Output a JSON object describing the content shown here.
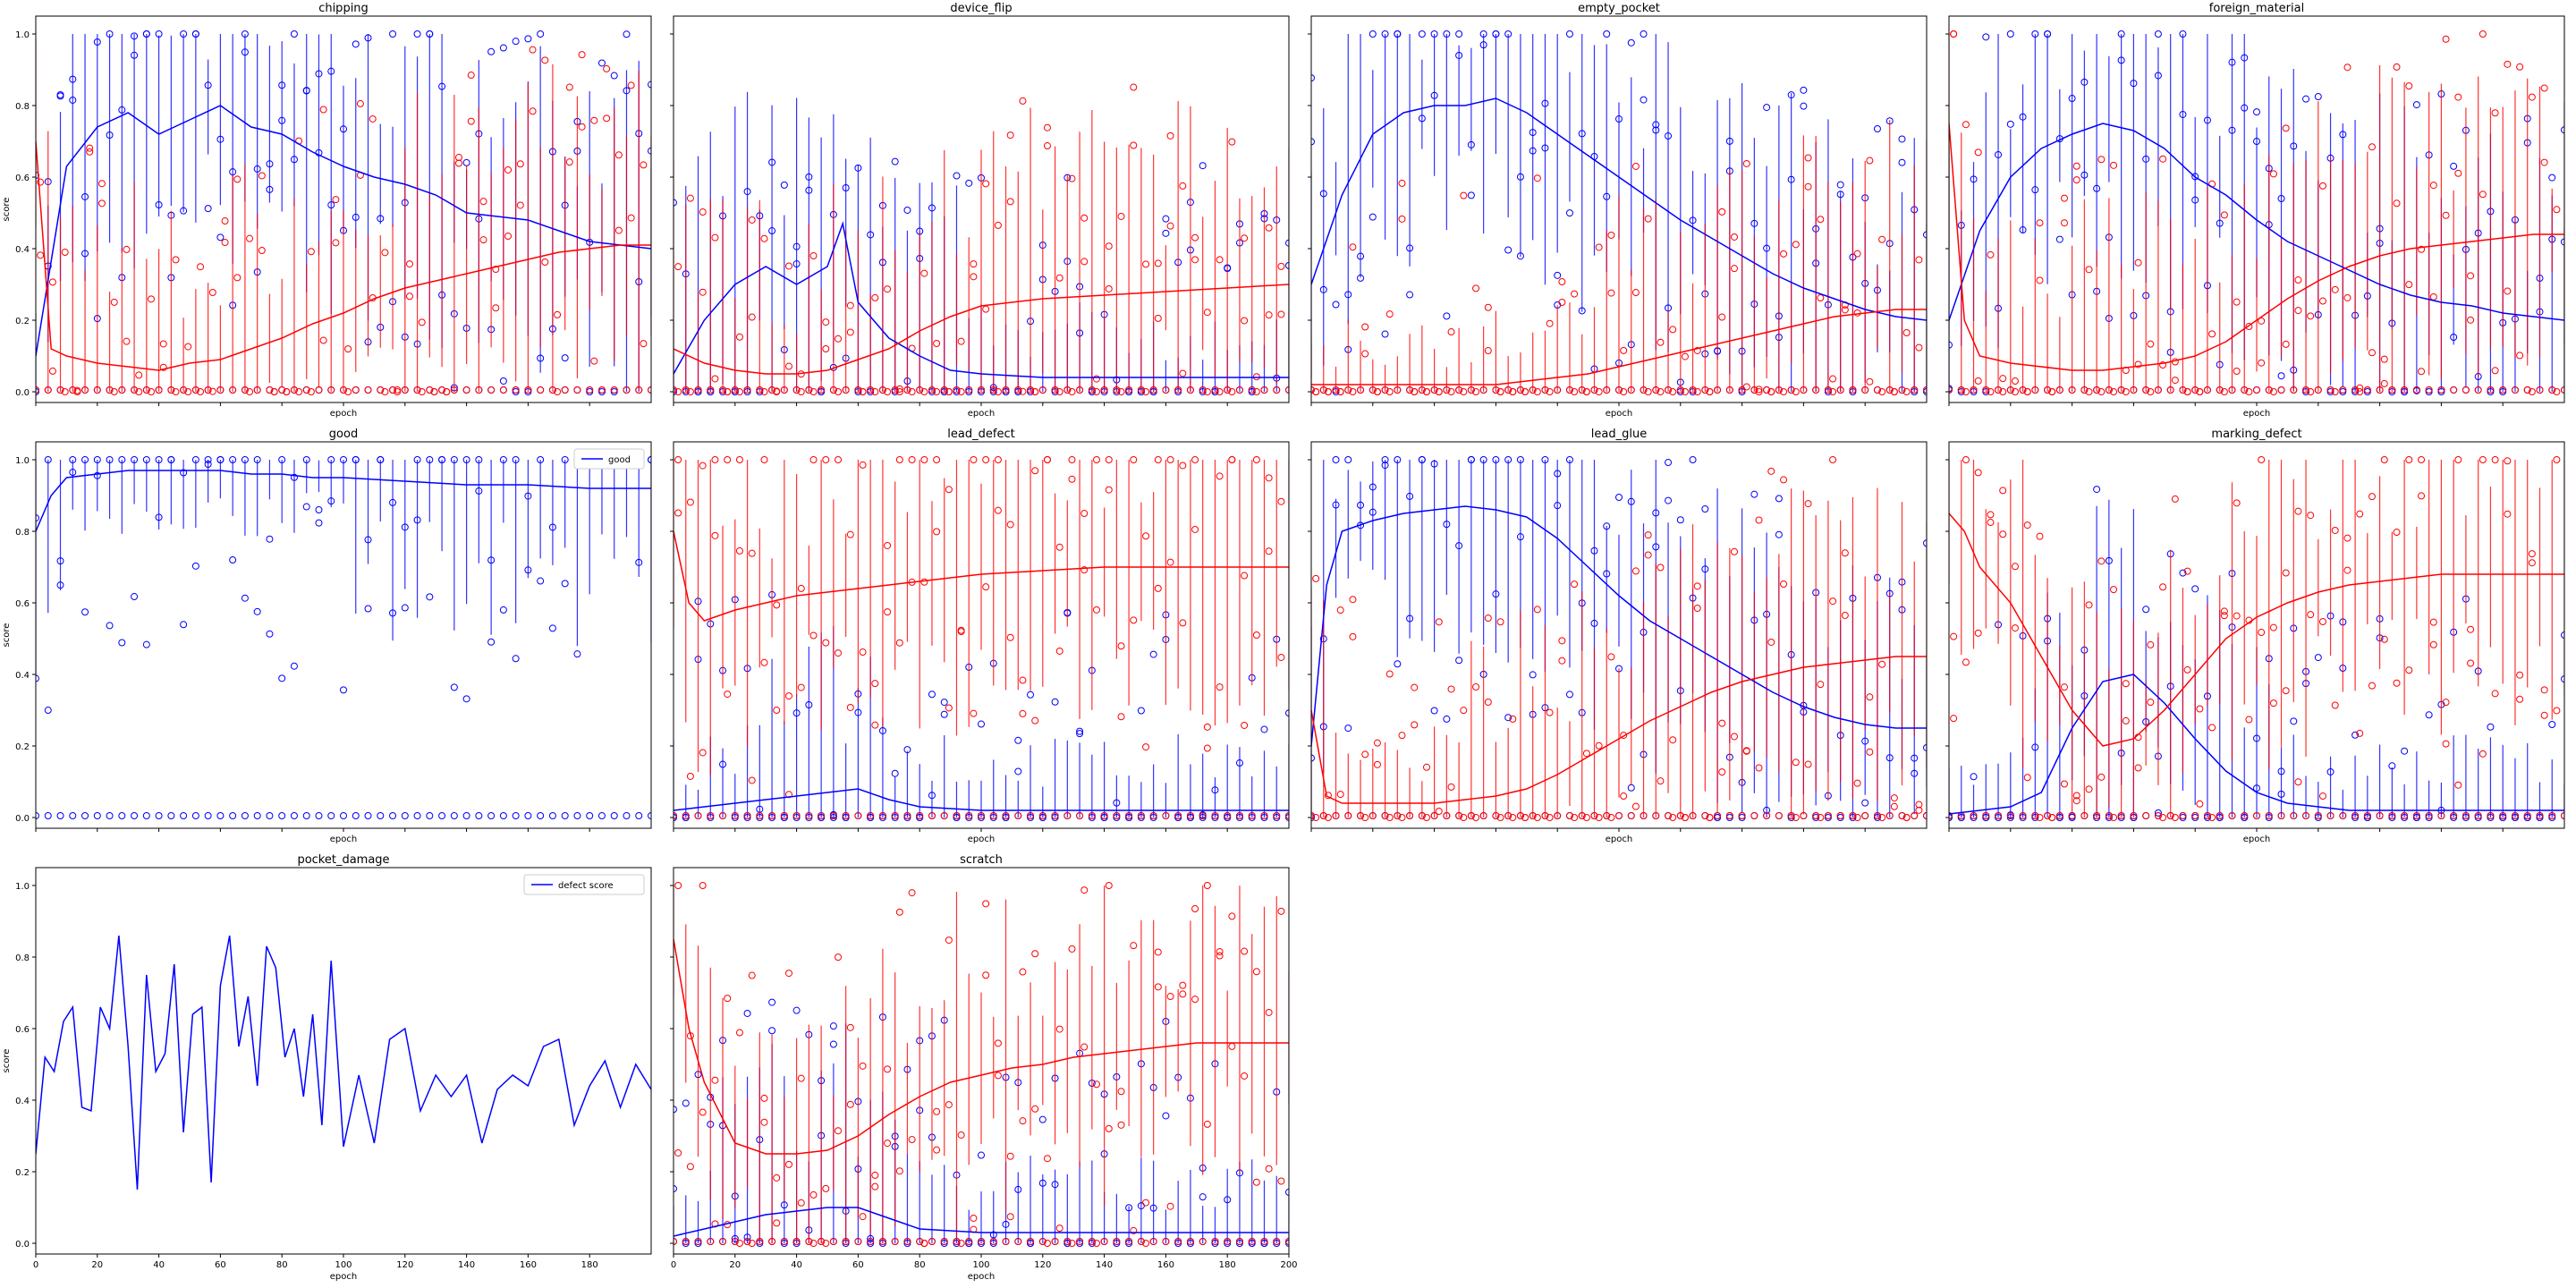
{
  "figure": {
    "ylabel": "score",
    "xlabel": "epoch",
    "x_ticks": [
      0,
      20,
      40,
      60,
      80,
      100,
      120,
      140,
      160,
      180
    ],
    "x_ticks_last_row_b": [
      0,
      20,
      40,
      60,
      80,
      100,
      120,
      140,
      160,
      180,
      200
    ],
    "y_ticks": [
      "0.0",
      "0.2",
      "0.4",
      "0.6",
      "0.8",
      "1.0"
    ],
    "colors": {
      "defect": "#ff0000",
      "good": "#0000ff"
    }
  },
  "chart_data": [
    {
      "title": "chipping",
      "type": "line",
      "xlim": [
        0,
        200
      ],
      "ylim": [
        -0.03,
        1.05
      ],
      "series": [
        {
          "color": "#0000ff",
          "x": [
            0,
            10,
            20,
            30,
            40,
            50,
            60,
            70,
            80,
            90,
            100,
            110,
            120,
            130,
            140,
            150,
            160,
            170,
            180,
            190,
            200
          ],
          "values": [
            0.1,
            0.63,
            0.74,
            0.78,
            0.72,
            0.76,
            0.8,
            0.74,
            0.72,
            0.67,
            0.63,
            0.6,
            0.58,
            0.55,
            0.5,
            0.49,
            0.48,
            0.45,
            0.42,
            0.41,
            0.4
          ]
        },
        {
          "color": "#ff0000",
          "x": [
            0,
            5,
            10,
            20,
            30,
            40,
            50,
            60,
            70,
            80,
            90,
            100,
            110,
            120,
            130,
            140,
            150,
            160,
            170,
            180,
            190,
            200
          ],
          "values": [
            0.7,
            0.12,
            0.1,
            0.08,
            0.07,
            0.06,
            0.08,
            0.09,
            0.12,
            0.15,
            0.19,
            0.22,
            0.26,
            0.29,
            0.31,
            0.33,
            0.35,
            0.37,
            0.39,
            0.4,
            0.41,
            0.41
          ]
        }
      ]
    },
    {
      "title": "device_flip",
      "type": "line",
      "xlim": [
        0,
        200
      ],
      "ylim": [
        -0.03,
        1.05
      ],
      "series": [
        {
          "color": "#0000ff",
          "x": [
            0,
            10,
            20,
            30,
            40,
            50,
            55,
            60,
            70,
            80,
            90,
            100,
            120,
            140,
            160,
            180,
            200
          ],
          "values": [
            0.05,
            0.2,
            0.3,
            0.35,
            0.3,
            0.35,
            0.47,
            0.25,
            0.15,
            0.1,
            0.06,
            0.05,
            0.04,
            0.04,
            0.04,
            0.04,
            0.04
          ]
        },
        {
          "color": "#ff0000",
          "x": [
            0,
            10,
            20,
            30,
            40,
            50,
            60,
            70,
            80,
            90,
            100,
            120,
            140,
            160,
            180,
            200
          ],
          "values": [
            0.12,
            0.08,
            0.06,
            0.05,
            0.05,
            0.06,
            0.09,
            0.12,
            0.17,
            0.21,
            0.24,
            0.26,
            0.27,
            0.28,
            0.29,
            0.3
          ]
        }
      ]
    },
    {
      "title": "empty_pocket",
      "type": "line",
      "xlim": [
        0,
        200
      ],
      "ylim": [
        -0.03,
        1.05
      ],
      "series": [
        {
          "color": "#0000ff",
          "x": [
            0,
            10,
            20,
            30,
            40,
            50,
            60,
            70,
            80,
            90,
            100,
            110,
            120,
            130,
            140,
            150,
            160,
            170,
            180,
            190,
            200
          ],
          "values": [
            0.3,
            0.55,
            0.72,
            0.78,
            0.8,
            0.8,
            0.82,
            0.78,
            0.72,
            0.66,
            0.6,
            0.54,
            0.48,
            0.43,
            0.38,
            0.33,
            0.29,
            0.26,
            0.23,
            0.21,
            0.2
          ]
        },
        {
          "color": "#ff0000",
          "x": [
            0,
            10,
            20,
            30,
            40,
            50,
            60,
            70,
            80,
            90,
            100,
            110,
            120,
            130,
            140,
            150,
            160,
            170,
            180,
            190,
            200
          ],
          "values": [
            0.02,
            0.02,
            0.02,
            0.02,
            0.02,
            0.02,
            0.02,
            0.03,
            0.04,
            0.05,
            0.07,
            0.09,
            0.11,
            0.13,
            0.15,
            0.17,
            0.19,
            0.21,
            0.22,
            0.23,
            0.23
          ]
        }
      ]
    },
    {
      "title": "foreign_material",
      "type": "line",
      "xlim": [
        0,
        200
      ],
      "ylim": [
        -0.03,
        1.05
      ],
      "series": [
        {
          "color": "#0000ff",
          "x": [
            0,
            10,
            20,
            30,
            40,
            50,
            60,
            70,
            80,
            90,
            100,
            110,
            120,
            130,
            140,
            150,
            160,
            170,
            180,
            190,
            200
          ],
          "values": [
            0.2,
            0.45,
            0.6,
            0.68,
            0.72,
            0.75,
            0.73,
            0.68,
            0.6,
            0.55,
            0.48,
            0.42,
            0.38,
            0.34,
            0.3,
            0.27,
            0.25,
            0.24,
            0.22,
            0.21,
            0.2
          ]
        },
        {
          "color": "#ff0000",
          "x": [
            0,
            5,
            10,
            20,
            30,
            40,
            50,
            60,
            70,
            80,
            90,
            100,
            110,
            120,
            130,
            140,
            150,
            160,
            170,
            180,
            190,
            200
          ],
          "values": [
            0.75,
            0.2,
            0.1,
            0.08,
            0.07,
            0.06,
            0.06,
            0.07,
            0.08,
            0.1,
            0.14,
            0.2,
            0.26,
            0.31,
            0.35,
            0.38,
            0.4,
            0.41,
            0.42,
            0.43,
            0.44,
            0.44
          ]
        }
      ]
    },
    {
      "title": "good",
      "type": "line",
      "xlim": [
        0,
        200
      ],
      "ylim": [
        -0.03,
        1.05
      ],
      "legend": [
        "good"
      ],
      "series": [
        {
          "color": "#0000ff",
          "x": [
            0,
            5,
            10,
            20,
            30,
            40,
            50,
            60,
            70,
            80,
            90,
            100,
            120,
            140,
            160,
            180,
            200
          ],
          "values": [
            0.8,
            0.9,
            0.95,
            0.96,
            0.97,
            0.97,
            0.97,
            0.97,
            0.96,
            0.96,
            0.95,
            0.95,
            0.94,
            0.93,
            0.93,
            0.92,
            0.92
          ]
        }
      ]
    },
    {
      "title": "lead_defect",
      "type": "line",
      "xlim": [
        0,
        200
      ],
      "ylim": [
        -0.03,
        1.05
      ],
      "series": [
        {
          "color": "#0000ff",
          "x": [
            0,
            10,
            20,
            30,
            40,
            50,
            60,
            70,
            80,
            100,
            120,
            140,
            160,
            180,
            200
          ],
          "values": [
            0.02,
            0.03,
            0.04,
            0.05,
            0.06,
            0.07,
            0.08,
            0.05,
            0.03,
            0.02,
            0.02,
            0.02,
            0.02,
            0.02,
            0.02
          ]
        },
        {
          "color": "#ff0000",
          "x": [
            0,
            5,
            10,
            20,
            30,
            40,
            50,
            60,
            70,
            80,
            90,
            100,
            120,
            140,
            160,
            180,
            200
          ],
          "values": [
            0.8,
            0.6,
            0.55,
            0.58,
            0.6,
            0.62,
            0.63,
            0.64,
            0.65,
            0.66,
            0.67,
            0.68,
            0.69,
            0.7,
            0.7,
            0.7,
            0.7
          ]
        }
      ]
    },
    {
      "title": "lead_glue",
      "type": "line",
      "xlim": [
        0,
        200
      ],
      "ylim": [
        -0.03,
        1.05
      ],
      "series": [
        {
          "color": "#0000ff",
          "x": [
            0,
            5,
            10,
            20,
            30,
            40,
            50,
            60,
            70,
            80,
            90,
            100,
            110,
            120,
            130,
            140,
            150,
            160,
            170,
            180,
            190,
            200
          ],
          "values": [
            0.2,
            0.65,
            0.8,
            0.83,
            0.85,
            0.86,
            0.87,
            0.86,
            0.84,
            0.78,
            0.7,
            0.62,
            0.55,
            0.5,
            0.45,
            0.4,
            0.35,
            0.31,
            0.28,
            0.26,
            0.25,
            0.25
          ]
        },
        {
          "color": "#ff0000",
          "x": [
            0,
            5,
            10,
            20,
            30,
            40,
            50,
            60,
            70,
            80,
            90,
            100,
            110,
            120,
            130,
            140,
            150,
            160,
            170,
            180,
            190,
            200
          ],
          "values": [
            0.3,
            0.06,
            0.04,
            0.04,
            0.04,
            0.04,
            0.05,
            0.06,
            0.08,
            0.12,
            0.17,
            0.22,
            0.27,
            0.31,
            0.35,
            0.38,
            0.4,
            0.42,
            0.43,
            0.44,
            0.45,
            0.45
          ]
        }
      ]
    },
    {
      "title": "marking_defect",
      "type": "line",
      "xlim": [
        0,
        200
      ],
      "ylim": [
        -0.03,
        1.05
      ],
      "series": [
        {
          "color": "#0000ff",
          "x": [
            0,
            10,
            20,
            30,
            40,
            50,
            60,
            70,
            80,
            90,
            100,
            110,
            120,
            130,
            140,
            150,
            160,
            170,
            180,
            190,
            200
          ],
          "values": [
            0.01,
            0.02,
            0.03,
            0.07,
            0.25,
            0.38,
            0.4,
            0.32,
            0.22,
            0.13,
            0.07,
            0.04,
            0.03,
            0.02,
            0.02,
            0.02,
            0.02,
            0.02,
            0.02,
            0.02,
            0.02
          ]
        },
        {
          "color": "#ff0000",
          "x": [
            0,
            5,
            10,
            20,
            30,
            40,
            50,
            60,
            70,
            80,
            90,
            100,
            110,
            120,
            130,
            140,
            150,
            160,
            170,
            180,
            190,
            200
          ],
          "values": [
            0.85,
            0.8,
            0.7,
            0.6,
            0.45,
            0.3,
            0.2,
            0.22,
            0.3,
            0.4,
            0.5,
            0.56,
            0.6,
            0.63,
            0.65,
            0.66,
            0.67,
            0.68,
            0.68,
            0.68,
            0.68,
            0.68
          ]
        }
      ]
    },
    {
      "title": "pocket_damage",
      "type": "line",
      "xlim": [
        0,
        200
      ],
      "ylim": [
        -0.03,
        1.05
      ],
      "legend": [
        "defect score"
      ],
      "series": [
        {
          "color": "#0000ff",
          "x": [
            0,
            3,
            6,
            9,
            12,
            15,
            18,
            21,
            24,
            27,
            30,
            33,
            36,
            39,
            42,
            45,
            48,
            51,
            54,
            57,
            60,
            63,
            66,
            69,
            72,
            75,
            78,
            81,
            84,
            87,
            90,
            93,
            96,
            100,
            105,
            110,
            115,
            120,
            125,
            130,
            135,
            140,
            145,
            150,
            155,
            160,
            165,
            170,
            175,
            180,
            185,
            190,
            195,
            200
          ],
          "values": [
            0.25,
            0.52,
            0.48,
            0.62,
            0.66,
            0.38,
            0.37,
            0.66,
            0.6,
            0.86,
            0.55,
            0.15,
            0.75,
            0.48,
            0.53,
            0.78,
            0.31,
            0.64,
            0.66,
            0.17,
            0.72,
            0.86,
            0.55,
            0.69,
            0.44,
            0.83,
            0.77,
            0.52,
            0.6,
            0.41,
            0.64,
            0.33,
            0.79,
            0.27,
            0.47,
            0.28,
            0.57,
            0.6,
            0.37,
            0.47,
            0.41,
            0.47,
            0.28,
            0.43,
            0.47,
            0.44,
            0.55,
            0.57,
            0.33,
            0.44,
            0.51,
            0.38,
            0.5,
            0.43
          ]
        }
      ]
    },
    {
      "title": "scratch",
      "type": "line",
      "xlim": [
        0,
        200
      ],
      "ylim": [
        -0.03,
        1.05
      ],
      "series": [
        {
          "color": "#0000ff",
          "x": [
            0,
            10,
            20,
            30,
            40,
            50,
            60,
            70,
            80,
            100,
            120,
            140,
            160,
            180,
            200
          ],
          "values": [
            0.02,
            0.04,
            0.06,
            0.08,
            0.09,
            0.1,
            0.1,
            0.07,
            0.04,
            0.03,
            0.03,
            0.03,
            0.03,
            0.03,
            0.03
          ]
        },
        {
          "color": "#ff0000",
          "x": [
            0,
            5,
            10,
            20,
            30,
            40,
            50,
            60,
            70,
            80,
            90,
            100,
            110,
            120,
            130,
            140,
            150,
            160,
            170,
            180,
            190,
            200
          ],
          "values": [
            0.85,
            0.6,
            0.45,
            0.28,
            0.25,
            0.25,
            0.26,
            0.3,
            0.36,
            0.41,
            0.45,
            0.47,
            0.49,
            0.5,
            0.52,
            0.53,
            0.54,
            0.55,
            0.56,
            0.56,
            0.56,
            0.56
          ]
        }
      ]
    }
  ]
}
